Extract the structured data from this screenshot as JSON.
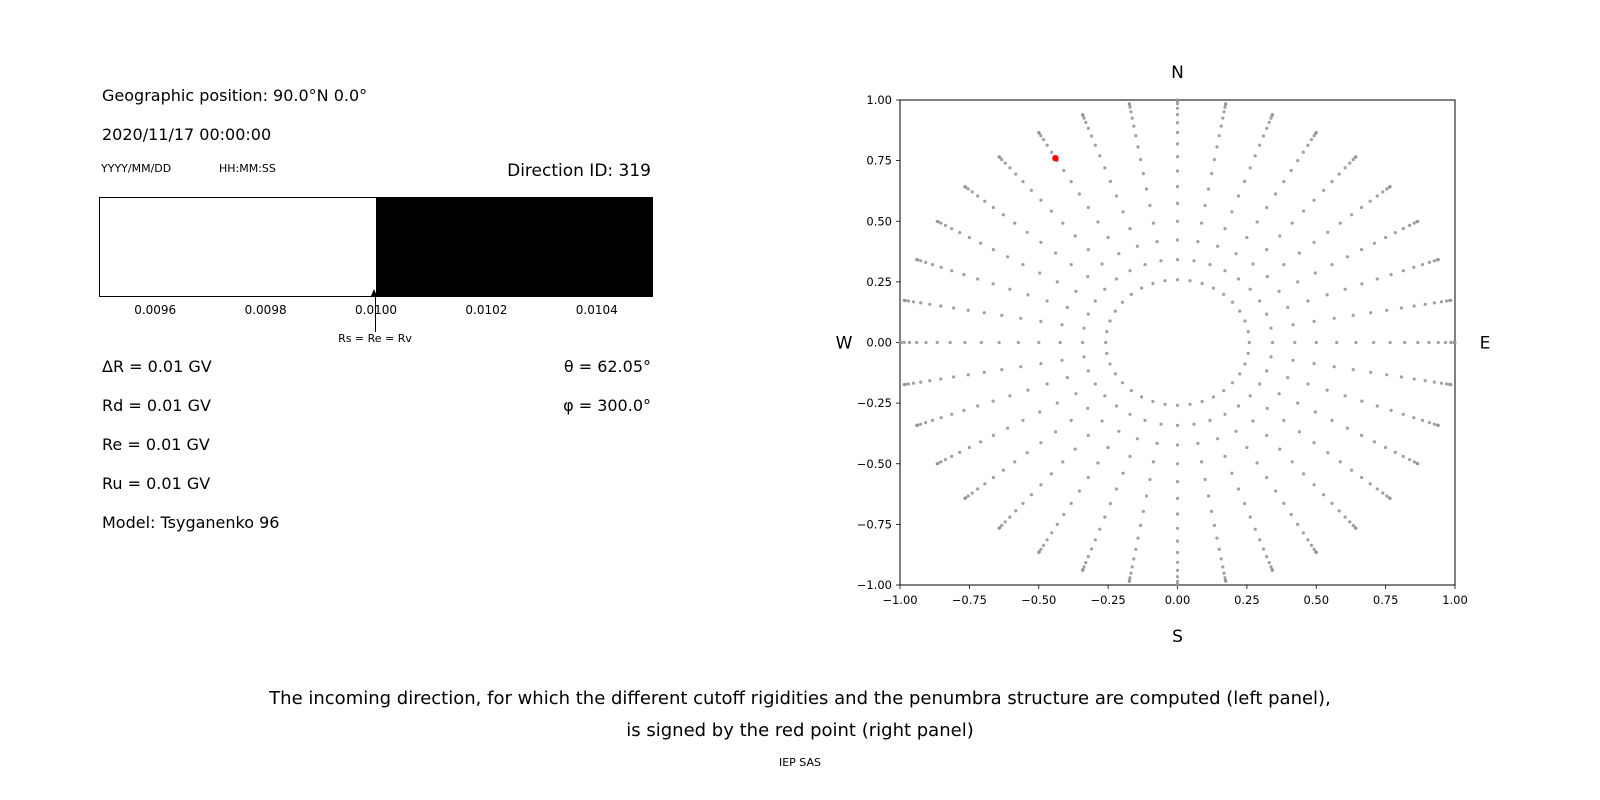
{
  "left_panel": {
    "geo_position": "Geographic position: 90.0°N 0.0°",
    "datetime": "2020/11/17 00:00:00",
    "date_format": "YYYY/MM/DD",
    "time_format": "HH:MM:SS",
    "direction_id": "Direction ID: 319",
    "delta_r": "ΔR = 0.01 GV",
    "rd": "Rd = 0.01 GV",
    "re": "Re = 0.01 GV",
    "ru": "Ru = 0.01 GV",
    "model": "Model: Tsyganenko 96",
    "theta": "θ = 62.05°",
    "phi": "φ = 300.0°"
  },
  "caption": {
    "line1": "The incoming direction, for which the different cutoff rigidities and the penumbra structure are computed (left panel),",
    "line2": "is signed by the red point (right panel)",
    "credit": "IEP SAS"
  },
  "chart_data": [
    {
      "type": "heatmap",
      "name": "penumbra-structure-strip",
      "xlim": [
        0.0095,
        0.0105
      ],
      "xtick_values": [
        0.0096,
        0.0098,
        0.01,
        0.0102,
        0.0104
      ],
      "xtick_labels": [
        "0.0096",
        "0.0098",
        "0.0100",
        "0.0102",
        "0.0104"
      ],
      "regions": [
        {
          "from": 0.0095,
          "to": 0.01,
          "color": "#ffffff"
        },
        {
          "from": 0.01,
          "to": 0.0105,
          "color": "#000000"
        }
      ],
      "marker": {
        "x": 0.01,
        "label": "Rs = Re = Rv"
      }
    },
    {
      "type": "scatter",
      "name": "incoming-directions-sky-plot",
      "xlim": [
        -1,
        1
      ],
      "ylim": [
        -1,
        1
      ],
      "xtick_values": [
        -1,
        -0.75,
        -0.5,
        -0.25,
        0,
        0.25,
        0.5,
        0.75,
        1
      ],
      "xtick_labels": [
        "−1.00",
        "−0.75",
        "−0.50",
        "−0.25",
        "0.00",
        "0.25",
        "0.50",
        "0.75",
        "1.00"
      ],
      "ytick_values": [
        -1,
        -0.75,
        -0.5,
        -0.25,
        0,
        0.25,
        0.5,
        0.75,
        1
      ],
      "ytick_labels": [
        "−1.00",
        "−0.75",
        "−0.50",
        "−0.25",
        "0.00",
        "0.25",
        "0.50",
        "0.75",
        "1.00"
      ],
      "compass": {
        "top": "N",
        "bottom": "S",
        "left": "W",
        "right": "E"
      },
      "grey_points": {
        "color": "#8f8f8f",
        "azimuth_start_deg": 0,
        "azimuth_step_deg": 10,
        "azimuth_count": 36,
        "zenith_start_deg": 15,
        "zenith_step_deg": 5,
        "zenith_count": 16,
        "radius_rule": "sin(zenith)"
      },
      "red_point": {
        "x": -0.44,
        "y": 0.76,
        "color": "#ff0000"
      }
    }
  ]
}
